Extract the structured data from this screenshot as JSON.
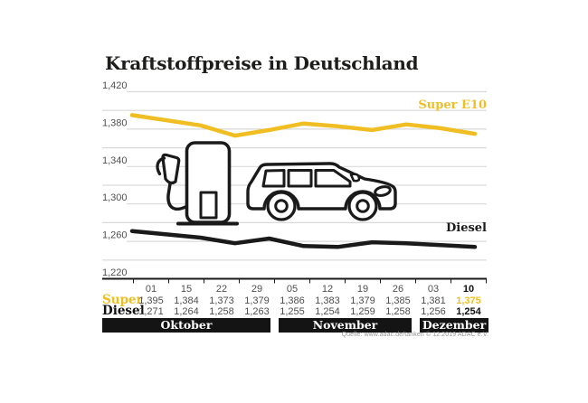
{
  "title": "Kraftstoffpreise in Deutschland",
  "source": {
    "text": "Quelle: www.adac.de/tanken   © 12.2019   ADAC e.V."
  },
  "colors": {
    "accent_yellow": "#F0BE22",
    "ink": "#1a1a1a",
    "grid": "#d9d9d9",
    "muted_text": "#4f4f4f",
    "band_bg": "#141414"
  },
  "icons": {
    "pump": "fuel-pump-icon",
    "car": "car-icon"
  },
  "chart_data": {
    "type": "line",
    "title": "Kraftstoffpreise in Deutschland",
    "grid": true,
    "legend_position": "inline-right",
    "y_axis": {
      "min": 1220,
      "max": 1420,
      "tick_step": 20,
      "label_step": 40,
      "labels": [
        "1,420",
        "1,380",
        "1,340",
        "1,300",
        "1,260",
        "1,220"
      ]
    },
    "x": {
      "dates": [
        "01",
        "15",
        "22",
        "29",
        "05",
        "12",
        "19",
        "26",
        "03",
        "10"
      ],
      "day_offsets": [
        0,
        14,
        21,
        28,
        35,
        42,
        49,
        56,
        63,
        70
      ],
      "months": [
        {
          "label": "Oktober",
          "span": [
            0,
            3
          ]
        },
        {
          "label": "November",
          "span": [
            4,
            7
          ]
        },
        {
          "label": "Dezember",
          "span": [
            8,
            9
          ]
        }
      ]
    },
    "series": [
      {
        "name": "Super E10",
        "table_label": "Super",
        "color": "#F0BE22",
        "values": [
          1395,
          1384,
          1373,
          1379,
          1386,
          1383,
          1379,
          1385,
          1381,
          1375
        ],
        "display": [
          "1,395",
          "1,384",
          "1,373",
          "1,379",
          "1,386",
          "1,383",
          "1,379",
          "1,385",
          "1,381",
          "1,375"
        ]
      },
      {
        "name": "Diesel",
        "table_label": "Diesel",
        "color": "#1a1a1a",
        "values": [
          1271,
          1264,
          1258,
          1263,
          1255,
          1254,
          1259,
          1258,
          1256,
          1254
        ],
        "display": [
          "1,271",
          "1,264",
          "1,258",
          "1,263",
          "1,255",
          "1,254",
          "1,259",
          "1,258",
          "1,256",
          "1,254"
        ]
      }
    ]
  }
}
